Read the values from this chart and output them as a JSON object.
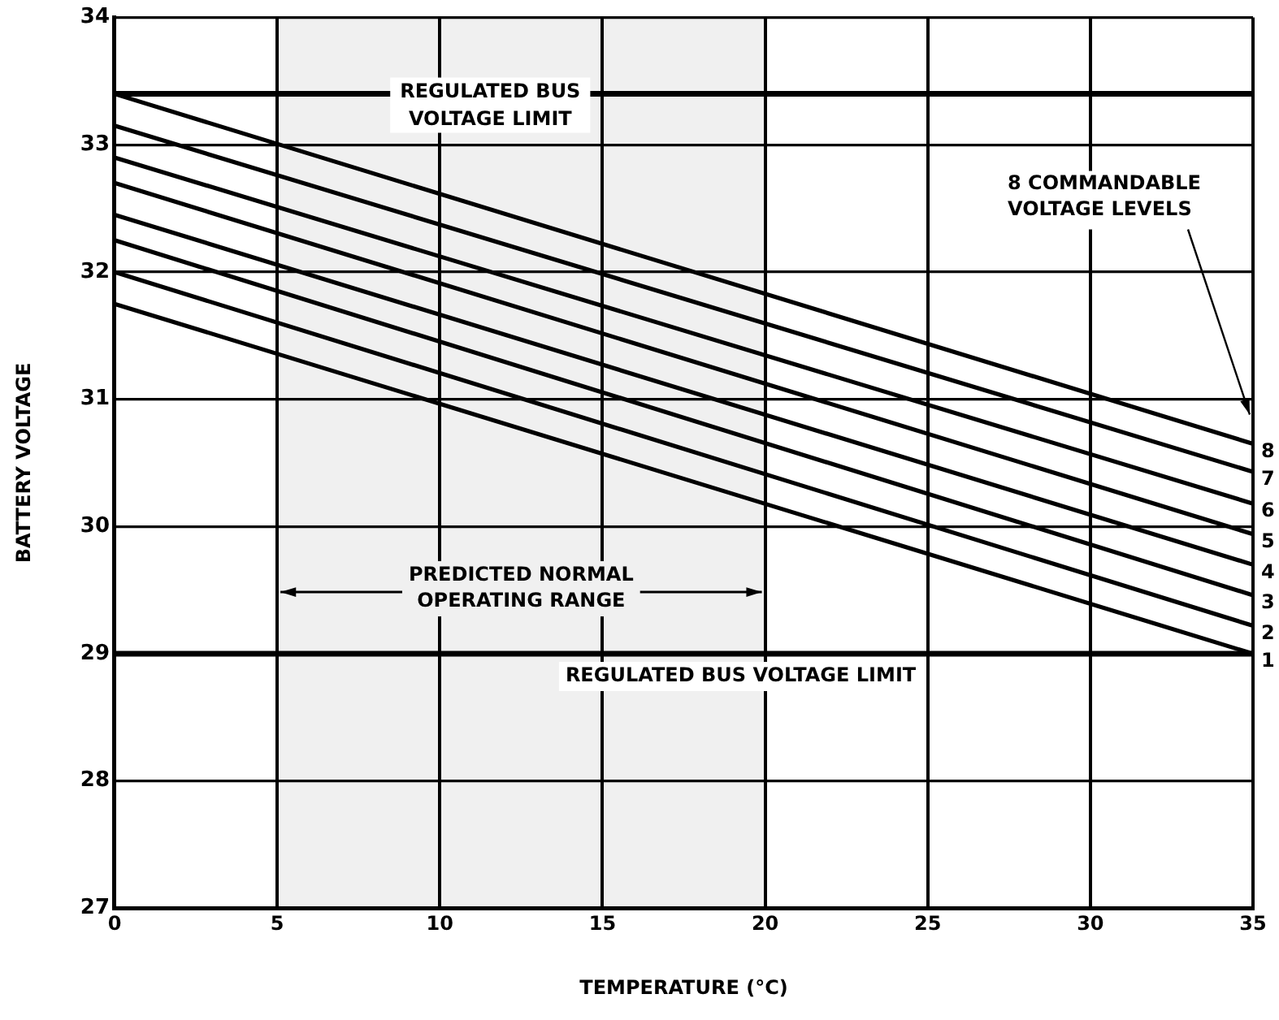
{
  "chart_data": {
    "type": "line",
    "xlabel": "TEMPERATURE (°C)",
    "ylabel": "BATTERY VOLTAGE",
    "x": [
      0,
      35
    ],
    "series": [
      {
        "name": "1",
        "color": "#000000",
        "values": [
          31.75,
          29.0
        ]
      },
      {
        "name": "2",
        "color": "#000000",
        "values": [
          32.0,
          29.22
        ]
      },
      {
        "name": "3",
        "color": "#000000",
        "values": [
          32.25,
          29.46
        ]
      },
      {
        "name": "4",
        "color": "#000000",
        "values": [
          32.45,
          29.7
        ]
      },
      {
        "name": "5",
        "color": "#000000",
        "values": [
          32.7,
          29.94
        ]
      },
      {
        "name": "6",
        "color": "#000000",
        "values": [
          32.9,
          30.18
        ]
      },
      {
        "name": "7",
        "color": "#000000",
        "values": [
          33.15,
          30.43
        ]
      },
      {
        "name": "8",
        "color": "#000000",
        "values": [
          33.4,
          30.65
        ]
      }
    ],
    "xlim": [
      0,
      35
    ],
    "xticks": [
      0,
      5,
      10,
      15,
      20,
      25,
      30,
      35
    ],
    "ylim": [
      27,
      34
    ],
    "yticks": [
      27,
      28,
      29,
      30,
      31,
      32,
      33,
      34
    ],
    "grid": true,
    "line_style": "solid",
    "ref_lines": [
      {
        "axis": "y",
        "value": 33.4,
        "label": "REGULATED BUS VOLTAGE LIMIT",
        "color": "#000000"
      },
      {
        "axis": "y",
        "value": 29,
        "label": "REGULATED BUS VOLTAGE LIMIT",
        "color": "#000000"
      }
    ],
    "bands": [
      {
        "axis": "x",
        "from": 5,
        "to": 20,
        "label": "PREDICTED NORMAL OPERATING RANGE",
        "color": "#f0f0f0"
      }
    ],
    "annotations": [
      "8 COMMANDABLE VOLTAGE LEVELS"
    ]
  }
}
